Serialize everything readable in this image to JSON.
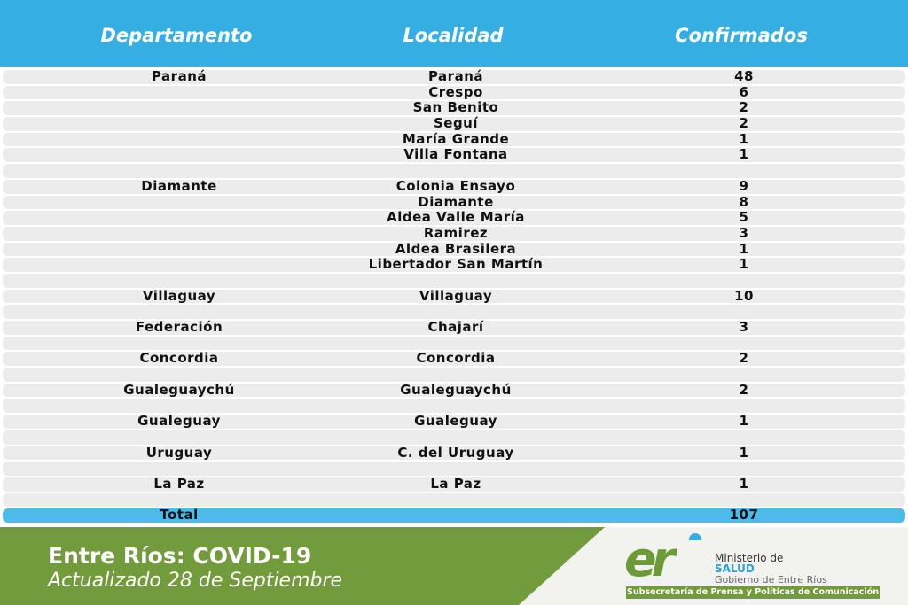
{
  "header": {
    "col1": "Departamento",
    "col2": "Localidad",
    "col3": "Confirmados"
  },
  "colors": {
    "header_blue": "#35aee3",
    "row_gray": "#ececec",
    "total_blue": "#4dbbe8",
    "footer_green": "#729b3c"
  },
  "rows": [
    {
      "departamento": "Paraná",
      "localidad": "Paraná",
      "confirmados": "48"
    },
    {
      "departamento": "",
      "localidad": "Crespo",
      "confirmados": "6"
    },
    {
      "departamento": "",
      "localidad": "San Benito",
      "confirmados": "2"
    },
    {
      "departamento": "",
      "localidad": "Seguí",
      "confirmados": "2"
    },
    {
      "departamento": "",
      "localidad": "María Grande",
      "confirmados": "1"
    },
    {
      "departamento": "",
      "localidad": "Villa Fontana",
      "confirmados": "1"
    },
    {
      "departamento": "",
      "localidad": "",
      "confirmados": ""
    },
    {
      "departamento": "Diamante",
      "localidad": "Colonia Ensayo",
      "confirmados": "9"
    },
    {
      "departamento": "",
      "localidad": "Diamante",
      "confirmados": "8"
    },
    {
      "departamento": "",
      "localidad": "Aldea Valle María",
      "confirmados": "5"
    },
    {
      "departamento": "",
      "localidad": "Ramirez",
      "confirmados": "3"
    },
    {
      "departamento": "",
      "localidad": "Aldea Brasilera",
      "confirmados": "1"
    },
    {
      "departamento": "",
      "localidad": "Libertador San Martín",
      "confirmados": "1"
    },
    {
      "departamento": "",
      "localidad": "",
      "confirmados": ""
    },
    {
      "departamento": "Villaguay",
      "localidad": "Villaguay",
      "confirmados": "10"
    },
    {
      "departamento": "",
      "localidad": "",
      "confirmados": ""
    },
    {
      "departamento": "Federación",
      "localidad": "Chajarí",
      "confirmados": "3"
    },
    {
      "departamento": "",
      "localidad": "",
      "confirmados": ""
    },
    {
      "departamento": "Concordia",
      "localidad": "Concordia",
      "confirmados": "2"
    },
    {
      "departamento": "",
      "localidad": "",
      "confirmados": ""
    },
    {
      "departamento": "Gualeguaychú",
      "localidad": "Gualeguaychú",
      "confirmados": "2"
    },
    {
      "departamento": "",
      "localidad": "",
      "confirmados": ""
    },
    {
      "departamento": "Gualeguay",
      "localidad": "Gualeguay",
      "confirmados": "1"
    },
    {
      "departamento": "",
      "localidad": "",
      "confirmados": ""
    },
    {
      "departamento": "Uruguay",
      "localidad": "C. del Uruguay",
      "confirmados": "1"
    },
    {
      "departamento": "",
      "localidad": "",
      "confirmados": ""
    },
    {
      "departamento": "La Paz",
      "localidad": "La Paz",
      "confirmados": "1"
    },
    {
      "departamento": "",
      "localidad": "",
      "confirmados": ""
    }
  ],
  "total": {
    "label": "Total",
    "value": "107"
  },
  "footer": {
    "title": "Entre Ríos: COVID-19",
    "subtitle": "Actualizado 28 de Septiembre",
    "logo": {
      "mark": "er",
      "line1": "Ministerio de",
      "line2": "SALUD",
      "line3": "Gobierno de Entre Ríos",
      "banner": "Subsecretaría de Prensa y Políticas de Comunicación"
    }
  }
}
